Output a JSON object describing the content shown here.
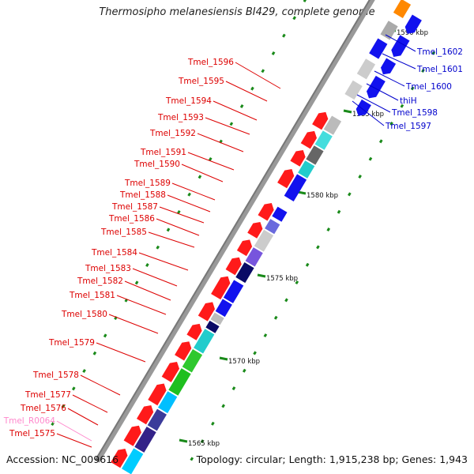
{
  "title": "Thermosipho melanesiensis BI429, complete genome",
  "footer": {
    "accession": "Accession: NC_009616",
    "topology": "Topology: circular; Length: 1,915,238 bp; Genes: 1,943"
  },
  "colors": {
    "forward_label": "#dd0000",
    "reverse_label": "#0000cc",
    "rna_label": "#ff88cc",
    "forward_gene": "#ff1a1a",
    "reverse_gene": "#1212ee",
    "tick": "#1a8a1a",
    "backbone": "#999999"
  },
  "ticks": [
    {
      "label": "1565 kbp"
    },
    {
      "label": "1570 kbp"
    },
    {
      "label": "1575 kbp"
    },
    {
      "label": "1580 kbp"
    },
    {
      "label": "1585 kbp"
    },
    {
      "label": "1590 kbp"
    }
  ],
  "left_labels": [
    {
      "text": "Tmel_1596",
      "kind": "forward"
    },
    {
      "text": "Tmel_1595",
      "kind": "forward"
    },
    {
      "text": "Tmel_1594",
      "kind": "forward"
    },
    {
      "text": "Tmel_1593",
      "kind": "forward"
    },
    {
      "text": "Tmel_1592",
      "kind": "forward"
    },
    {
      "text": "Tmel_1591",
      "kind": "forward"
    },
    {
      "text": "Tmel_1590",
      "kind": "forward"
    },
    {
      "text": "Tmel_1589",
      "kind": "forward"
    },
    {
      "text": "Tmel_1588",
      "kind": "forward"
    },
    {
      "text": "Tmel_1587",
      "kind": "forward"
    },
    {
      "text": "Tmel_1586",
      "kind": "forward"
    },
    {
      "text": "Tmel_1585",
      "kind": "forward"
    },
    {
      "text": "Tmel_1584",
      "kind": "forward"
    },
    {
      "text": "Tmel_1583",
      "kind": "forward"
    },
    {
      "text": "Tmel_1582",
      "kind": "forward"
    },
    {
      "text": "Tmel_1581",
      "kind": "forward"
    },
    {
      "text": "Tmel_1580",
      "kind": "forward"
    },
    {
      "text": "Tmel_1579",
      "kind": "forward"
    },
    {
      "text": "Tmel_1578",
      "kind": "forward"
    },
    {
      "text": "Tmel_1577",
      "kind": "forward"
    },
    {
      "text": "Tmel_1576",
      "kind": "forward"
    },
    {
      "text": "Tmel_R0064",
      "kind": "rna"
    },
    {
      "text": "Tmel_1575",
      "kind": "forward"
    }
  ],
  "right_labels": [
    {
      "text": "Tmel_1602",
      "kind": "reverse"
    },
    {
      "text": "Tmel_1601",
      "kind": "reverse"
    },
    {
      "text": "Tmel_1600",
      "kind": "reverse"
    },
    {
      "text": "thiH",
      "kind": "reverse"
    },
    {
      "text": "Tmel_1598",
      "kind": "reverse"
    },
    {
      "text": "Tmel_1597",
      "kind": "reverse"
    }
  ]
}
